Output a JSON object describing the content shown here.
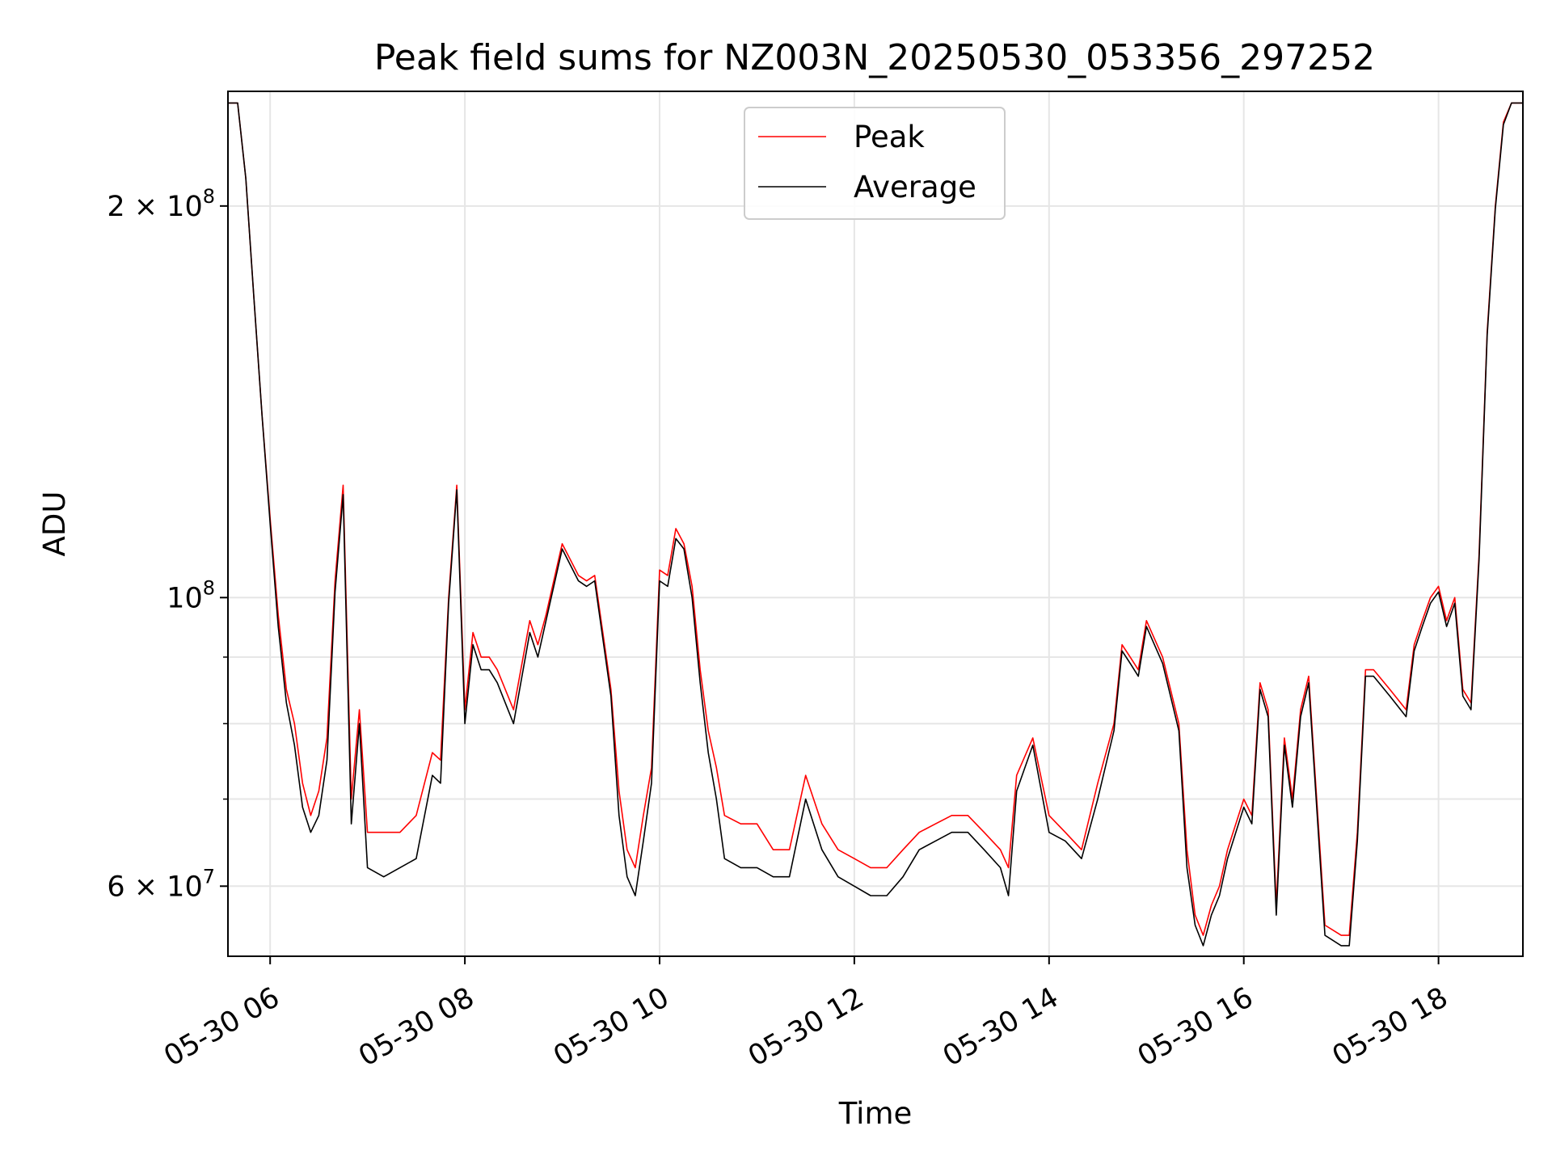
{
  "chart_data": {
    "type": "line",
    "title": "Peak field sums for NZ003N_20250530_053356_297252",
    "xlabel": "Time",
    "ylabel": "ADU",
    "yscale": "log",
    "ylim": [
      53000000,
      245000000
    ],
    "xlim": [
      "2025-05-30 05:34",
      "2025-05-30 18:52"
    ],
    "x_ticks": [
      "05-30 06",
      "05-30 08",
      "05-30 10",
      "05-30 12",
      "05-30 14",
      "05-30 16",
      "05-30 18"
    ],
    "y_ticks": [
      {
        "base": "2 × 10",
        "exp": "8",
        "value": 200000000
      },
      {
        "base": "10",
        "exp": "8",
        "value": 100000000
      },
      {
        "base": "6 × 10",
        "exp": "7",
        "value": 60000000
      }
    ],
    "grid": true,
    "legend_position": "top-center",
    "series": [
      {
        "name": "Peak",
        "color": "#ff0000"
      },
      {
        "name": "Average",
        "color": "#000000"
      }
    ],
    "x": [
      "05:34",
      "05:40",
      "05:45",
      "05:50",
      "05:55",
      "06:00",
      "06:05",
      "06:10",
      "06:15",
      "06:20",
      "06:25",
      "06:30",
      "06:35",
      "06:40",
      "06:45",
      "06:50",
      "06:55",
      "07:00",
      "07:10",
      "07:20",
      "07:30",
      "07:40",
      "07:45",
      "07:50",
      "07:55",
      "08:00",
      "08:05",
      "08:10",
      "08:15",
      "08:20",
      "08:30",
      "08:40",
      "08:45",
      "08:50",
      "09:00",
      "09:10",
      "09:15",
      "09:20",
      "09:30",
      "09:35",
      "09:40",
      "09:45",
      "09:50",
      "09:55",
      "10:00",
      "10:05",
      "10:10",
      "10:15",
      "10:20",
      "10:25",
      "10:30",
      "10:35",
      "10:40",
      "10:50",
      "11:00",
      "11:10",
      "11:20",
      "11:30",
      "11:40",
      "11:50",
      "12:00",
      "12:10",
      "12:20",
      "12:30",
      "12:40",
      "12:50",
      "13:00",
      "13:10",
      "13:20",
      "13:30",
      "13:35",
      "13:40",
      "13:50",
      "14:00",
      "14:10",
      "14:20",
      "14:30",
      "14:40",
      "14:45",
      "14:50",
      "14:55",
      "15:00",
      "15:10",
      "15:20",
      "15:25",
      "15:30",
      "15:35",
      "15:40",
      "15:45",
      "15:50",
      "16:00",
      "16:05",
      "16:10",
      "16:15",
      "16:20",
      "16:25",
      "16:30",
      "16:35",
      "16:40",
      "16:50",
      "17:00",
      "17:05",
      "17:10",
      "17:15",
      "17:20",
      "17:30",
      "17:40",
      "17:45",
      "17:50",
      "17:55",
      "18:00",
      "18:05",
      "18:10",
      "18:15",
      "18:20",
      "18:25",
      "18:30",
      "18:35",
      "18:40",
      "18:45",
      "18:52"
    ],
    "peak": [
      240000000,
      240000000,
      210000000,
      170000000,
      138000000,
      115000000,
      97000000,
      85000000,
      80000000,
      72000000,
      68000000,
      71000000,
      78000000,
      103000000,
      122000000,
      70000000,
      82000000,
      66000000,
      66000000,
      66000000,
      68000000,
      76000000,
      75000000,
      100000000,
      122000000,
      82000000,
      94000000,
      90000000,
      90000000,
      88000000,
      82000000,
      96000000,
      92000000,
      97000000,
      110000000,
      104000000,
      103000000,
      104000000,
      85000000,
      71000000,
      64000000,
      62000000,
      68000000,
      74000000,
      105000000,
      104000000,
      113000000,
      110000000,
      102000000,
      88000000,
      79000000,
      74000000,
      68000000,
      67000000,
      67000000,
      64000000,
      64000000,
      73000000,
      67000000,
      64000000,
      63000000,
      62000000,
      62000000,
      64000000,
      66000000,
      67000000,
      68000000,
      68000000,
      66000000,
      64000000,
      62000000,
      73000000,
      78000000,
      68000000,
      66000000,
      64000000,
      72000000,
      80000000,
      92000000,
      90000000,
      88000000,
      96000000,
      90000000,
      80000000,
      64000000,
      57000000,
      55000000,
      58000000,
      60000000,
      64000000,
      70000000,
      68000000,
      86000000,
      82000000,
      58000000,
      78000000,
      70000000,
      82000000,
      87000000,
      56000000,
      55000000,
      55000000,
      66000000,
      88000000,
      88000000,
      85000000,
      82000000,
      92000000,
      96000000,
      100000000,
      102000000,
      96000000,
      100000000,
      85000000,
      83000000,
      108000000,
      160000000,
      200000000,
      232000000,
      240000000,
      240000000
    ],
    "average": [
      240000000,
      240000000,
      210000000,
      170000000,
      138000000,
      114000000,
      95000000,
      83000000,
      77000000,
      69000000,
      66000000,
      68000000,
      75000000,
      101000000,
      120000000,
      67000000,
      80000000,
      62000000,
      61000000,
      62000000,
      63000000,
      73000000,
      72000000,
      99000000,
      121000000,
      80000000,
      92000000,
      88000000,
      88000000,
      86000000,
      80000000,
      94000000,
      90000000,
      96000000,
      109000000,
      103000000,
      102000000,
      103000000,
      84000000,
      68000000,
      61000000,
      59000000,
      65000000,
      72000000,
      103000000,
      102000000,
      111000000,
      109000000,
      100000000,
      86000000,
      76000000,
      70000000,
      63000000,
      62000000,
      62000000,
      61000000,
      61000000,
      70000000,
      64000000,
      61000000,
      60000000,
      59000000,
      59000000,
      61000000,
      64000000,
      65000000,
      66000000,
      66000000,
      64000000,
      62000000,
      59000000,
      71000000,
      77000000,
      66000000,
      65000000,
      63000000,
      70000000,
      79000000,
      91000000,
      89000000,
      87000000,
      95000000,
      89000000,
      79000000,
      62000000,
      56000000,
      54000000,
      57000000,
      59000000,
      63000000,
      69000000,
      67000000,
      85000000,
      81000000,
      57000000,
      77000000,
      69000000,
      81000000,
      86000000,
      55000000,
      54000000,
      54000000,
      65000000,
      87000000,
      87000000,
      84000000,
      81000000,
      91000000,
      95000000,
      99000000,
      101000000,
      95000000,
      99000000,
      84000000,
      82000000,
      107000000,
      159000000,
      199000000,
      231000000,
      240000000,
      240000000
    ]
  }
}
